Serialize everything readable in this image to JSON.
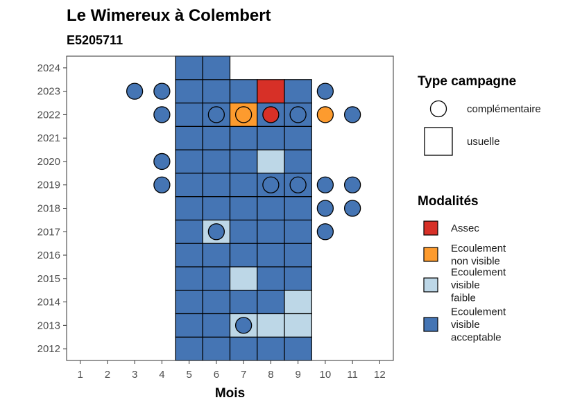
{
  "chart_data": {
    "type": "heatmap",
    "title": "Le Wimereux à Colembert",
    "subtitle": "E5205711",
    "xlabel": "Mois",
    "ylabel": "",
    "x_ticks": [
      1,
      2,
      3,
      4,
      5,
      6,
      7,
      8,
      9,
      10,
      11,
      12
    ],
    "y_ticks": [
      2012,
      2013,
      2014,
      2015,
      2016,
      2017,
      2018,
      2019,
      2020,
      2021,
      2022,
      2023,
      2024
    ],
    "xlim": [
      0.5,
      12.5
    ],
    "ylim": [
      2011.5,
      2024.5
    ],
    "grid": false,
    "legend_position": "right",
    "legend_shape": {
      "title": "Type campagne",
      "entries": [
        {
          "key": "complementaire",
          "label": "complémentaire",
          "shape": "circle"
        },
        {
          "key": "usuelle",
          "label": "usuelle",
          "shape": "square"
        }
      ]
    },
    "legend_fill": {
      "title": "Modalités",
      "entries": [
        {
          "key": "assec",
          "label_lines": [
            "Assec"
          ],
          "color": "#d73027"
        },
        {
          "key": "nonvisible",
          "label_lines": [
            "Ecoulement",
            "non visible"
          ],
          "color": "#fd9b2e"
        },
        {
          "key": "faible",
          "label_lines": [
            "Ecoulement",
            "visible",
            "faible"
          ],
          "color": "#bdd7e7"
        },
        {
          "key": "acceptable",
          "label_lines": [
            "Ecoulement",
            "visible",
            "acceptable"
          ],
          "color": "#4575b4"
        }
      ]
    },
    "usuelle": [
      {
        "year": 2012,
        "month": 5,
        "status": "acceptable"
      },
      {
        "year": 2012,
        "month": 6,
        "status": "acceptable"
      },
      {
        "year": 2012,
        "month": 7,
        "status": "acceptable"
      },
      {
        "year": 2012,
        "month": 8,
        "status": "acceptable"
      },
      {
        "year": 2012,
        "month": 9,
        "status": "acceptable"
      },
      {
        "year": 2013,
        "month": 5,
        "status": "acceptable"
      },
      {
        "year": 2013,
        "month": 6,
        "status": "acceptable"
      },
      {
        "year": 2013,
        "month": 7,
        "status": "faible"
      },
      {
        "year": 2013,
        "month": 8,
        "status": "faible"
      },
      {
        "year": 2013,
        "month": 9,
        "status": "faible"
      },
      {
        "year": 2014,
        "month": 5,
        "status": "acceptable"
      },
      {
        "year": 2014,
        "month": 6,
        "status": "acceptable"
      },
      {
        "year": 2014,
        "month": 7,
        "status": "acceptable"
      },
      {
        "year": 2014,
        "month": 8,
        "status": "acceptable"
      },
      {
        "year": 2014,
        "month": 9,
        "status": "faible"
      },
      {
        "year": 2015,
        "month": 5,
        "status": "acceptable"
      },
      {
        "year": 2015,
        "month": 6,
        "status": "acceptable"
      },
      {
        "year": 2015,
        "month": 7,
        "status": "faible"
      },
      {
        "year": 2015,
        "month": 8,
        "status": "acceptable"
      },
      {
        "year": 2015,
        "month": 9,
        "status": "acceptable"
      },
      {
        "year": 2016,
        "month": 5,
        "status": "acceptable"
      },
      {
        "year": 2016,
        "month": 6,
        "status": "acceptable"
      },
      {
        "year": 2016,
        "month": 7,
        "status": "acceptable"
      },
      {
        "year": 2016,
        "month": 8,
        "status": "acceptable"
      },
      {
        "year": 2016,
        "month": 9,
        "status": "acceptable"
      },
      {
        "year": 2017,
        "month": 5,
        "status": "acceptable"
      },
      {
        "year": 2017,
        "month": 6,
        "status": "faible"
      },
      {
        "year": 2017,
        "month": 7,
        "status": "acceptable"
      },
      {
        "year": 2017,
        "month": 8,
        "status": "acceptable"
      },
      {
        "year": 2017,
        "month": 9,
        "status": "acceptable"
      },
      {
        "year": 2018,
        "month": 5,
        "status": "acceptable"
      },
      {
        "year": 2018,
        "month": 6,
        "status": "acceptable"
      },
      {
        "year": 2018,
        "month": 7,
        "status": "acceptable"
      },
      {
        "year": 2018,
        "month": 8,
        "status": "acceptable"
      },
      {
        "year": 2018,
        "month": 9,
        "status": "acceptable"
      },
      {
        "year": 2019,
        "month": 5,
        "status": "acceptable"
      },
      {
        "year": 2019,
        "month": 6,
        "status": "acceptable"
      },
      {
        "year": 2019,
        "month": 7,
        "status": "acceptable"
      },
      {
        "year": 2019,
        "month": 8,
        "status": "acceptable"
      },
      {
        "year": 2019,
        "month": 9,
        "status": "acceptable"
      },
      {
        "year": 2020,
        "month": 5,
        "status": "acceptable"
      },
      {
        "year": 2020,
        "month": 6,
        "status": "acceptable"
      },
      {
        "year": 2020,
        "month": 7,
        "status": "acceptable"
      },
      {
        "year": 2020,
        "month": 8,
        "status": "faible"
      },
      {
        "year": 2020,
        "month": 9,
        "status": "acceptable"
      },
      {
        "year": 2021,
        "month": 5,
        "status": "acceptable"
      },
      {
        "year": 2021,
        "month": 6,
        "status": "acceptable"
      },
      {
        "year": 2021,
        "month": 7,
        "status": "acceptable"
      },
      {
        "year": 2021,
        "month": 8,
        "status": "acceptable"
      },
      {
        "year": 2021,
        "month": 9,
        "status": "acceptable"
      },
      {
        "year": 2022,
        "month": 5,
        "status": "acceptable"
      },
      {
        "year": 2022,
        "month": 6,
        "status": "acceptable"
      },
      {
        "year": 2022,
        "month": 7,
        "status": "nonvisible"
      },
      {
        "year": 2022,
        "month": 8,
        "status": "acceptable"
      },
      {
        "year": 2022,
        "month": 9,
        "status": "acceptable"
      },
      {
        "year": 2023,
        "month": 5,
        "status": "acceptable"
      },
      {
        "year": 2023,
        "month": 6,
        "status": "acceptable"
      },
      {
        "year": 2023,
        "month": 7,
        "status": "acceptable"
      },
      {
        "year": 2023,
        "month": 8,
        "status": "assec"
      },
      {
        "year": 2023,
        "month": 9,
        "status": "acceptable"
      },
      {
        "year": 2024,
        "month": 5,
        "status": "acceptable"
      },
      {
        "year": 2024,
        "month": 6,
        "status": "acceptable"
      }
    ],
    "complementaire": [
      {
        "year": 2013,
        "month": 7,
        "status": "acceptable"
      },
      {
        "year": 2017,
        "month": 6,
        "status": "acceptable"
      },
      {
        "year": 2017,
        "month": 10,
        "status": "acceptable"
      },
      {
        "year": 2018,
        "month": 10,
        "status": "acceptable"
      },
      {
        "year": 2018,
        "month": 11,
        "status": "acceptable"
      },
      {
        "year": 2019,
        "month": 4,
        "status": "acceptable"
      },
      {
        "year": 2019,
        "month": 8,
        "status": "acceptable"
      },
      {
        "year": 2019,
        "month": 9,
        "status": "acceptable"
      },
      {
        "year": 2019,
        "month": 10,
        "status": "acceptable"
      },
      {
        "year": 2019,
        "month": 11,
        "status": "acceptable"
      },
      {
        "year": 2020,
        "month": 4,
        "status": "acceptable"
      },
      {
        "year": 2022,
        "month": 4,
        "status": "acceptable"
      },
      {
        "year": 2022,
        "month": 6,
        "status": "acceptable"
      },
      {
        "year": 2022,
        "month": 7,
        "status": "nonvisible"
      },
      {
        "year": 2022,
        "month": 8,
        "status": "assec"
      },
      {
        "year": 2022,
        "month": 9,
        "status": "acceptable"
      },
      {
        "year": 2022,
        "month": 10,
        "status": "nonvisible"
      },
      {
        "year": 2022,
        "month": 11,
        "status": "acceptable"
      },
      {
        "year": 2023,
        "month": 3,
        "status": "acceptable"
      },
      {
        "year": 2023,
        "month": 4,
        "status": "acceptable"
      },
      {
        "year": 2023,
        "month": 10,
        "status": "acceptable"
      }
    ]
  }
}
